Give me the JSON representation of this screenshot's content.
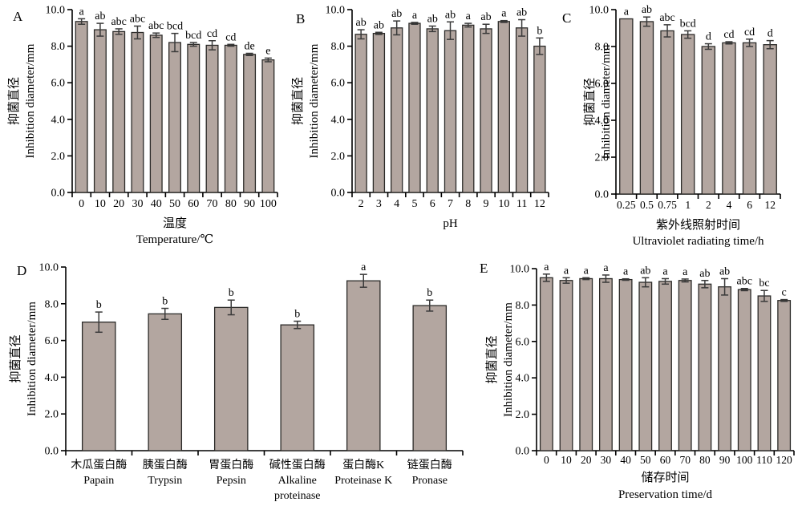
{
  "figure": {
    "background": "#ffffff",
    "bar_fill": "#b3a6a0",
    "bar_stroke": "#2b2a28",
    "error_color": "#3a3a3a",
    "axis_color": "#000000"
  },
  "chart_data": [
    {
      "panel": "A",
      "type": "bar",
      "categories": [
        "0",
        "10",
        "20",
        "30",
        "40",
        "50",
        "60",
        "70",
        "80",
        "90",
        "100"
      ],
      "values": [
        9.35,
        8.9,
        8.8,
        8.75,
        8.6,
        8.2,
        8.1,
        8.05,
        8.05,
        7.55,
        7.25
      ],
      "errors": [
        0.15,
        0.35,
        0.15,
        0.35,
        0.12,
        0.5,
        0.1,
        0.25,
        0.05,
        0.06,
        0.1
      ],
      "sig_letters": [
        "a",
        "ab",
        "abc",
        "abc",
        "abc",
        "bcd",
        "bcd",
        "cd",
        "cd",
        "de",
        "e"
      ],
      "ylabel_lines": [
        "抑菌直径",
        "Inhibition diameter/mm"
      ],
      "xlabel_lines": [
        "温度",
        "Temperature/℃"
      ],
      "ytick_values": [
        0,
        2,
        4,
        6,
        8,
        10
      ],
      "ytick_labels": [
        "0.0",
        "2.0",
        "4.0",
        "6.0",
        "8.0",
        "10.0"
      ],
      "ylim": [
        0,
        10
      ],
      "legend": "none",
      "grid": false
    },
    {
      "panel": "B",
      "type": "bar",
      "categories": [
        "2",
        "3",
        "4",
        "5",
        "6",
        "7",
        "8",
        "9",
        "10",
        "11",
        "12"
      ],
      "values": [
        8.65,
        8.7,
        9.0,
        9.25,
        8.95,
        8.85,
        9.15,
        8.95,
        9.35,
        9.0,
        8.0
      ],
      "errors": [
        0.25,
        0.06,
        0.38,
        0.05,
        0.15,
        0.48,
        0.1,
        0.25,
        0.05,
        0.45,
        0.45
      ],
      "sig_letters": [
        "ab",
        "ab",
        "ab",
        "a",
        "ab",
        "ab",
        "a",
        "ab",
        "a",
        "ab",
        "b"
      ],
      "ylabel_lines": [
        "抑菌直径",
        "Inhibition diameter/mm"
      ],
      "xlabel_lines": [
        "pH"
      ],
      "ytick_values": [
        0,
        2,
        4,
        6,
        8,
        10
      ],
      "ytick_labels": [
        "0.0",
        "2.0",
        "4.0",
        "6.0",
        "8.0",
        "10.0"
      ],
      "ylim": [
        0,
        10
      ],
      "legend": "none",
      "grid": false
    },
    {
      "panel": "C",
      "type": "bar",
      "categories": [
        "0.25",
        "0.5",
        "0.75",
        "1",
        "2",
        "4",
        "6",
        "12"
      ],
      "values": [
        9.5,
        9.35,
        8.85,
        8.65,
        8.0,
        8.2,
        8.2,
        8.1
      ],
      "errors": [
        0,
        0.25,
        0.33,
        0.2,
        0.15,
        0.06,
        0.2,
        0.22
      ],
      "sig_letters": [
        "a",
        "ab",
        "abc",
        "bcd",
        "d",
        "cd",
        "cd",
        "d"
      ],
      "ylabel_lines": [
        "抑菌直径",
        "Inhibition diameter/mm"
      ],
      "xlabel_lines": [
        "紫外线照射时间",
        "Ultraviolet radiating time/h"
      ],
      "ytick_values": [
        0,
        2,
        4,
        6,
        8,
        10
      ],
      "ytick_labels": [
        "0.0",
        "2.0",
        "4.0",
        "6.0",
        "8.0",
        "10.0"
      ],
      "ylim": [
        0,
        10
      ],
      "legend": "none",
      "grid": false
    },
    {
      "panel": "D",
      "type": "bar",
      "categories": [
        [
          "木瓜蛋白酶",
          "Papain"
        ],
        [
          "胰蛋白酶",
          "Trypsin"
        ],
        [
          "胃蛋白酶",
          "Pepsin"
        ],
        [
          "碱性蛋白酶",
          "Alkaline",
          "proteinase"
        ],
        [
          "蛋白酶K",
          "Proteinase K"
        ],
        [
          "链蛋白酶",
          "Pronase"
        ]
      ],
      "values": [
        7.0,
        7.45,
        7.8,
        6.85,
        9.25,
        7.9
      ],
      "errors": [
        0.55,
        0.3,
        0.4,
        0.2,
        0.35,
        0.3
      ],
      "sig_letters": [
        "b",
        "b",
        "b",
        "b",
        "a",
        "b"
      ],
      "ylabel_lines": [
        "抑菌直径",
        "Inhibition diameter/mm"
      ],
      "xlabel_lines": [],
      "ytick_values": [
        0,
        2,
        4,
        6,
        8,
        10
      ],
      "ytick_labels": [
        "0.0",
        "2.0",
        "4.0",
        "6.0",
        "8.0",
        "10.0"
      ],
      "ylim": [
        0,
        10
      ],
      "legend": "none",
      "grid": false
    },
    {
      "panel": "E",
      "type": "bar",
      "categories": [
        "0",
        "10",
        "20",
        "30",
        "40",
        "50",
        "60",
        "70",
        "80",
        "90",
        "100",
        "110",
        "120"
      ],
      "values": [
        9.5,
        9.35,
        9.45,
        9.45,
        9.4,
        9.25,
        9.3,
        9.35,
        9.15,
        9.0,
        8.85,
        8.5,
        8.25
      ],
      "errors": [
        0.2,
        0.15,
        0.05,
        0.2,
        0.04,
        0.25,
        0.15,
        0.08,
        0.2,
        0.45,
        0.06,
        0.3,
        0.05
      ],
      "sig_letters": [
        "a",
        "a",
        "a",
        "a",
        "a",
        "ab",
        "a",
        "a",
        "ab",
        "ab",
        "abc",
        "bc",
        "c"
      ],
      "ylabel_lines": [
        "抑菌直径",
        "Inhibition diameter/mm"
      ],
      "xlabel_lines": [
        "储存时间",
        "Preservation time/d"
      ],
      "ytick_values": [
        0,
        2,
        4,
        6,
        8,
        10
      ],
      "ytick_labels": [
        "0.0",
        "2.0",
        "4.0",
        "6.0",
        "8.0",
        "10.0"
      ],
      "ylim": [
        0,
        10
      ],
      "legend": "none",
      "grid": false
    }
  ]
}
